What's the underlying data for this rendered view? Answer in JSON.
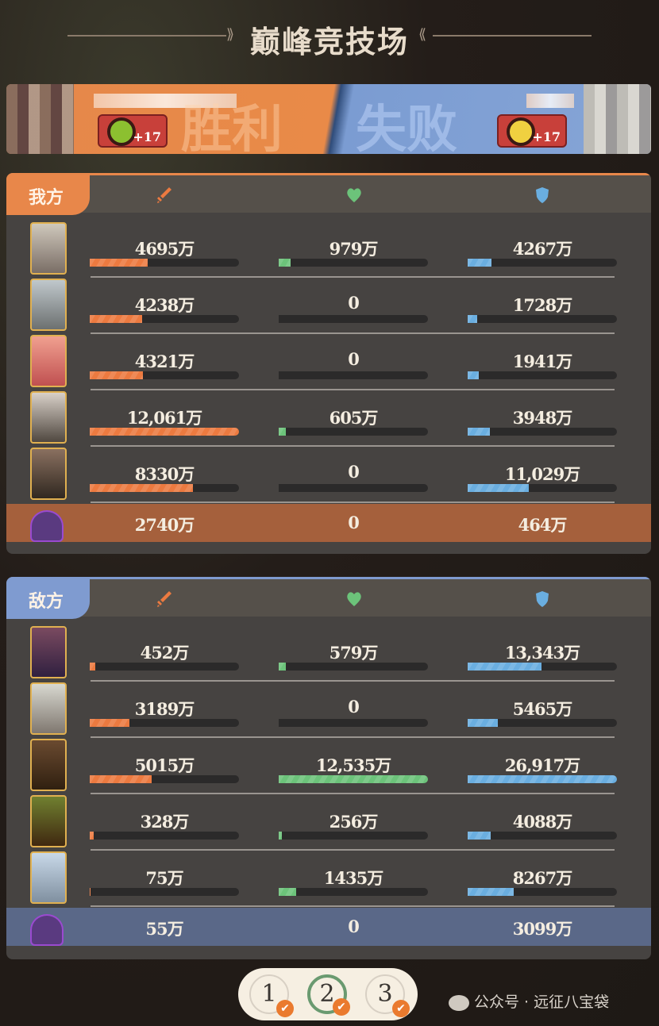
{
  "title": "巅峰竞技场",
  "banner": {
    "left_result": "胜利",
    "right_result": "失败",
    "left_score_change": "+17",
    "right_score_change": "+17"
  },
  "colors": {
    "damage": "#ec7a40",
    "healing": "#6cc37a",
    "tanking": "#6aaee0",
    "ally": "#e8874a",
    "enemy": "#7f9bd0"
  },
  "columns": [
    {
      "icon": "sword-icon",
      "metric": "damage"
    },
    {
      "icon": "heart-icon",
      "metric": "healing"
    },
    {
      "icon": "shield-icon",
      "metric": "tanking"
    }
  ],
  "teams": [
    {
      "label": "我方",
      "heroes": [
        {
          "damage": "4695万",
          "healing": "979万",
          "tanking": "4267万"
        },
        {
          "damage": "4238万",
          "healing": "0",
          "tanking": "1728万"
        },
        {
          "damage": "4321万",
          "healing": "0",
          "tanking": "1941万"
        },
        {
          "damage": "12,061万",
          "healing": "605万",
          "tanking": "3948万"
        },
        {
          "damage": "8330万",
          "healing": "0",
          "tanking": "11,029万"
        }
      ],
      "summon": {
        "damage": "2740万",
        "healing": "0",
        "tanking": "464万"
      }
    },
    {
      "label": "敌方",
      "heroes": [
        {
          "damage": "452万",
          "healing": "579万",
          "tanking": "13,343万"
        },
        {
          "damage": "3189万",
          "healing": "0",
          "tanking": "5465万"
        },
        {
          "damage": "5015万",
          "healing": "12,535万",
          "tanking": "26,917万"
        },
        {
          "damage": "328万",
          "healing": "256万",
          "tanking": "4088万"
        },
        {
          "damage": "75万",
          "healing": "1435万",
          "tanking": "8267万"
        }
      ],
      "summon": {
        "damage": "55万",
        "healing": "0",
        "tanking": "3099万"
      }
    }
  ],
  "pager": {
    "pages": [
      "1",
      "2",
      "3"
    ],
    "active": "2",
    "completed": [
      "1",
      "2",
      "3"
    ]
  },
  "watermark": "公众号 · 远征八宝袋"
}
